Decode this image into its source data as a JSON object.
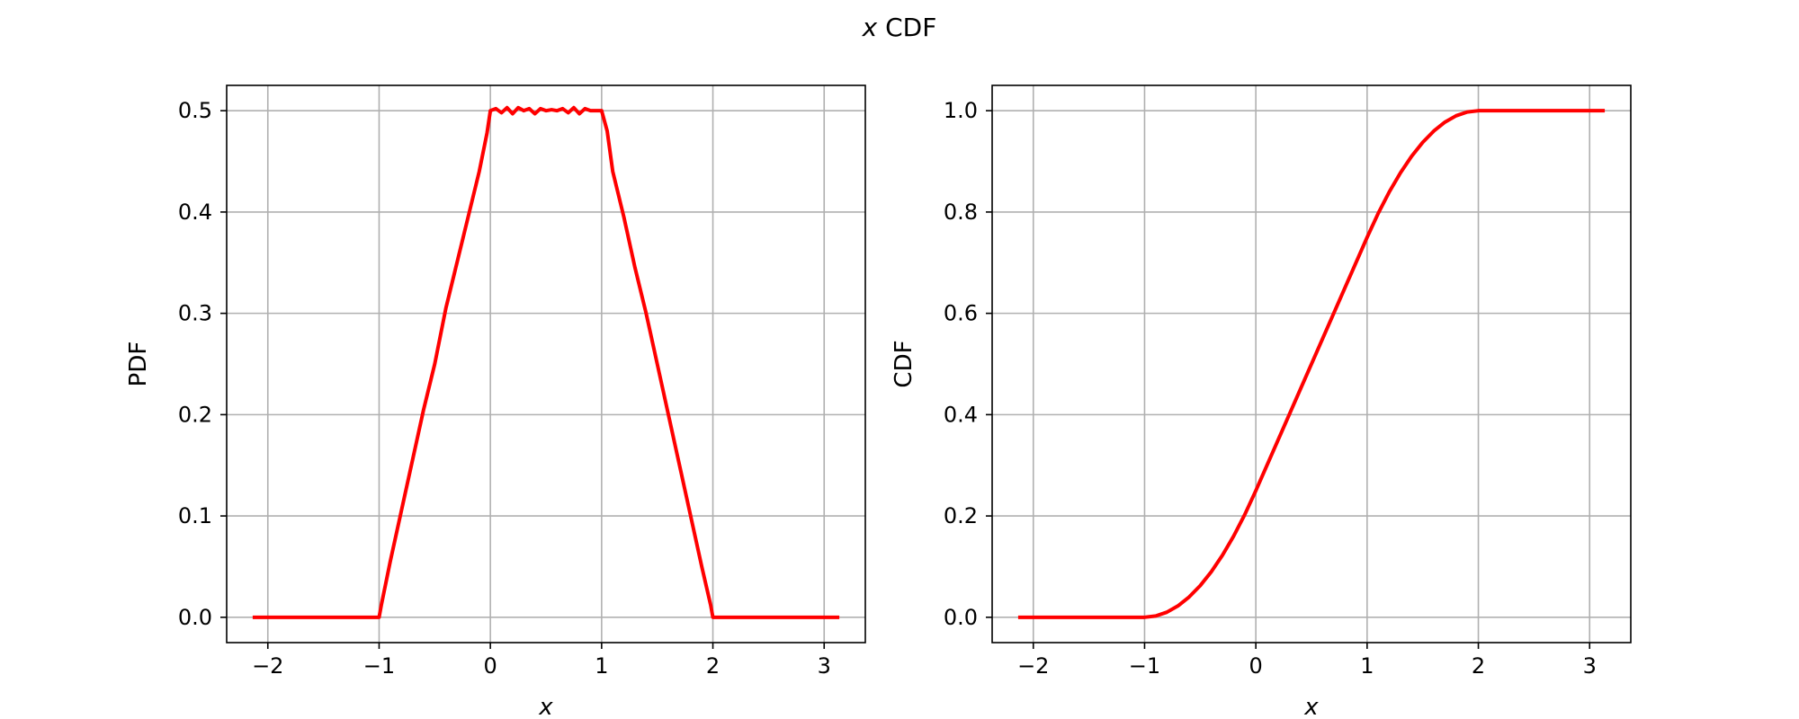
{
  "suptitle": {
    "var": "x",
    "rest": " CDF"
  },
  "colors": {
    "line": "#ff0000",
    "grid": "#b0b0b0",
    "axes": "#000000"
  },
  "chart_data": [
    {
      "type": "line",
      "title": "",
      "xlabel": "x",
      "ylabel": "PDF",
      "xlim": [
        -2.37,
        3.37
      ],
      "ylim": [
        -0.025,
        0.525
      ],
      "xticks": [
        -2,
        -1,
        0,
        1,
        2,
        3
      ],
      "xtick_labels": [
        "−2",
        "−1",
        "0",
        "1",
        "2",
        "3"
      ],
      "yticks": [
        0.0,
        0.1,
        0.2,
        0.3,
        0.4,
        0.5
      ],
      "ytick_labels": [
        "0.0",
        "0.1",
        "0.2",
        "0.3",
        "0.4",
        "0.5"
      ],
      "grid": true,
      "legend": "none",
      "series": [
        {
          "color": "#ff0000",
          "x": [
            -2.12,
            -1.5,
            -1.0,
            -0.98,
            -0.9,
            -0.8,
            -0.7,
            -0.6,
            -0.5,
            -0.4,
            -0.3,
            -0.2,
            -0.1,
            -0.03,
            0.0,
            0.05,
            0.1,
            0.15,
            0.2,
            0.25,
            0.3,
            0.35,
            0.4,
            0.45,
            0.5,
            0.55,
            0.6,
            0.65,
            0.7,
            0.75,
            0.8,
            0.85,
            0.9,
            0.95,
            1.0,
            1.05,
            1.1,
            1.2,
            1.3,
            1.4,
            1.5,
            1.6,
            1.7,
            1.8,
            1.9,
            1.98,
            2.0,
            2.5,
            3.12
          ],
          "y": [
            0.0,
            0.0,
            0.0,
            0.012,
            0.055,
            0.105,
            0.155,
            0.205,
            0.25,
            0.305,
            0.35,
            0.395,
            0.44,
            0.478,
            0.5,
            0.502,
            0.498,
            0.503,
            0.497,
            0.503,
            0.5,
            0.502,
            0.497,
            0.502,
            0.5,
            0.501,
            0.5,
            0.502,
            0.498,
            0.503,
            0.497,
            0.502,
            0.5,
            0.5,
            0.5,
            0.48,
            0.44,
            0.395,
            0.345,
            0.3,
            0.25,
            0.2,
            0.15,
            0.1,
            0.05,
            0.012,
            0.0,
            0.0,
            0.0
          ]
        }
      ]
    },
    {
      "type": "line",
      "title": "",
      "xlabel": "x",
      "ylabel": "CDF",
      "xlim": [
        -2.37,
        3.37
      ],
      "ylim": [
        -0.05,
        1.05
      ],
      "xticks": [
        -2,
        -1,
        0,
        1,
        2,
        3
      ],
      "xtick_labels": [
        "−2",
        "−1",
        "0",
        "1",
        "2",
        "3"
      ],
      "yticks": [
        0.0,
        0.2,
        0.4,
        0.6,
        0.8,
        1.0
      ],
      "ytick_labels": [
        "0.0",
        "0.2",
        "0.4",
        "0.6",
        "0.8",
        "1.0"
      ],
      "grid": true,
      "legend": "none",
      "series": [
        {
          "color": "#ff0000",
          "x": [
            -2.12,
            -1.5,
            -1.0,
            -0.9,
            -0.8,
            -0.7,
            -0.6,
            -0.5,
            -0.4,
            -0.3,
            -0.2,
            -0.1,
            0.0,
            0.2,
            0.4,
            0.6,
            0.8,
            1.0,
            1.1,
            1.2,
            1.3,
            1.4,
            1.5,
            1.6,
            1.7,
            1.8,
            1.9,
            2.0,
            2.5,
            3.12
          ],
          "y": [
            0.0,
            0.0,
            0.0,
            0.0025,
            0.01,
            0.0225,
            0.04,
            0.0625,
            0.09,
            0.1225,
            0.16,
            0.2025,
            0.25,
            0.35,
            0.45,
            0.55,
            0.65,
            0.75,
            0.7975,
            0.84,
            0.8775,
            0.91,
            0.9375,
            0.96,
            0.9775,
            0.99,
            0.9975,
            1.0,
            1.0,
            1.0
          ]
        }
      ]
    }
  ]
}
